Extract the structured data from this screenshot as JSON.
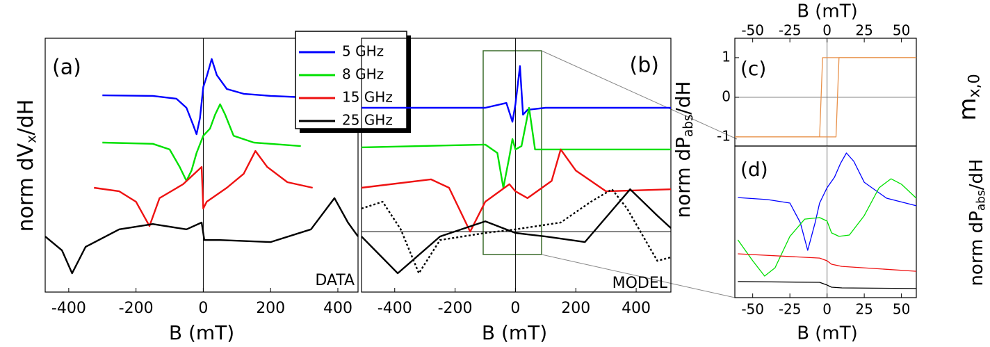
{
  "chart_data": [
    {
      "type": "line",
      "panel": "(a)",
      "annotation": "DATA",
      "x_label": "B (mT)",
      "y_label": {
        "main": "norm dV",
        "sub": "x",
        "tail": "/dH"
      },
      "xlim": [
        -470,
        460
      ],
      "ylim": [
        0,
        10
      ],
      "xticks": [
        -400,
        -200,
        0,
        200,
        400
      ],
      "series": [
        {
          "name": "5 GHz",
          "color": "#0000ff",
          "x": [
            -300,
            -150,
            -80,
            -50,
            -30,
            -20,
            -10,
            0,
            10,
            25,
            40,
            70,
            120,
            200,
            300,
            450
          ],
          "values": [
            7.75,
            7.73,
            7.62,
            7.26,
            6.58,
            6.22,
            6.85,
            8.08,
            8.49,
            9.18,
            8.55,
            8.0,
            7.81,
            7.73,
            7.67,
            7.64
          ]
        },
        {
          "name": "8 GHz",
          "color": "#00e000",
          "x": [
            -300,
            -150,
            -100,
            -70,
            -50,
            -35,
            -20,
            0,
            20,
            35,
            50,
            65,
            90,
            150,
            290
          ],
          "values": [
            5.89,
            5.84,
            5.62,
            4.93,
            4.38,
            4.79,
            5.48,
            6.16,
            6.44,
            6.99,
            7.4,
            6.99,
            6.16,
            5.89,
            5.75
          ]
        },
        {
          "name": "15 GHz",
          "color": "#ee1111",
          "x": [
            -325,
            -250,
            -200,
            -160,
            -130,
            -60,
            -5,
            0,
            10,
            70,
            120,
            155,
            190,
            250,
            325
          ],
          "values": [
            4.11,
            3.97,
            3.56,
            2.6,
            3.7,
            4.25,
            4.93,
            3.29,
            3.56,
            4.11,
            4.66,
            5.56,
            4.93,
            4.33,
            4.11
          ]
        },
        {
          "name": "25 GHz",
          "color": "#000000",
          "x": [
            -470,
            -420,
            -390,
            -350,
            -250,
            -150,
            -50,
            -5,
            3,
            50,
            200,
            320,
            390,
            430,
            460
          ],
          "values": [
            2.19,
            1.64,
            0.74,
            1.78,
            2.47,
            2.68,
            2.47,
            2.74,
            2.05,
            2.05,
            1.97,
            2.47,
            3.7,
            2.74,
            2.19
          ]
        }
      ]
    },
    {
      "type": "line",
      "panel": "(b)",
      "annotation": "MODEL",
      "x_label": "B  (mT)",
      "y_label": {
        "main": "norm dP",
        "sub": "abs",
        "tail": "/dH"
      },
      "xlim": [
        -510,
        515
      ],
      "ylim": [
        0,
        10
      ],
      "xticks": [
        -400,
        -200,
        0,
        200,
        400
      ],
      "reference_line": 2.38,
      "series": [
        {
          "color": "#0000ff",
          "x": [
            -510,
            -100,
            -30,
            -10,
            0,
            15,
            25,
            40,
            100,
            515
          ],
          "values": [
            7.26,
            7.26,
            7.45,
            6.71,
            7.4,
            8.9,
            6.99,
            7.18,
            7.26,
            7.26
          ]
        },
        {
          "color": "#00e000",
          "x": [
            -510,
            -100,
            -60,
            -40,
            -20,
            -10,
            0,
            20,
            45,
            65,
            150,
            515
          ],
          "values": [
            5.7,
            5.81,
            5.48,
            4.11,
            5.34,
            6.03,
            5.62,
            5.75,
            7.26,
            5.62,
            5.62,
            5.62
          ]
        },
        {
          "color": "#ee1111",
          "x": [
            -510,
            -280,
            -220,
            -150,
            -100,
            -20,
            0,
            40,
            120,
            150,
            200,
            300,
            515
          ],
          "values": [
            4.11,
            4.44,
            4.11,
            2.38,
            3.56,
            4.25,
            3.97,
            3.7,
            4.38,
            5.62,
            4.79,
            3.97,
            4.05
          ]
        },
        {
          "color": "#000000",
          "x": [
            -510,
            -390,
            -250,
            -100,
            0,
            100,
            230,
            380,
            470,
            515
          ],
          "values": [
            2.19,
            0.74,
            2.19,
            2.79,
            2.33,
            2.19,
            1.97,
            4.05,
            3.01,
            2.52
          ]
        },
        {
          "color": "#000000",
          "style": "dotted",
          "x": [
            -510,
            -440,
            -380,
            -320,
            -250,
            -100,
            0,
            150,
            250,
            320,
            370,
            470,
            515
          ],
          "values": [
            3.29,
            3.56,
            2.47,
            0.74,
            2.05,
            2.33,
            2.47,
            2.74,
            3.56,
            4.05,
            3.29,
            1.23,
            1.37
          ]
        }
      ]
    },
    {
      "type": "line",
      "panel": "(c)",
      "x_label": "B (mT)",
      "y_label": {
        "main": "m",
        "sub": "x,0",
        "tail": ""
      },
      "xlim": [
        -62,
        60
      ],
      "ylim": [
        -1.23,
        1.49
      ],
      "xticks": [
        -50,
        -25,
        0,
        25,
        50
      ],
      "yticks": [
        1,
        0,
        -1
      ],
      "reference_line": 0,
      "series": [
        {
          "color": "#e8914a",
          "x": [
            -62,
            6,
            8,
            60
          ],
          "values": [
            -1,
            -1,
            1,
            1
          ]
        },
        {
          "color": "#e8914a",
          "x": [
            60,
            -3,
            -5,
            -62
          ],
          "values": [
            1,
            1,
            -1,
            -1
          ]
        }
      ]
    },
    {
      "type": "line",
      "panel": "(d)",
      "x_label": "B  (mT)",
      "y_label": {
        "main": "norm dP",
        "sub": "abs",
        "tail": "/dH"
      },
      "xlim": [
        -62,
        60
      ],
      "ylim": [
        0,
        10
      ],
      "xticks": [
        -50,
        -25,
        0,
        25,
        50
      ],
      "series": [
        {
          "color": "#0000ff",
          "x": [
            -60,
            -40,
            -25,
            -18,
            -13,
            -8,
            -5,
            0,
            5,
            9,
            13,
            18,
            25,
            40,
            60
          ],
          "values": [
            6.6,
            6.47,
            6.24,
            4.95,
            3.12,
            4.95,
            6.24,
            7.25,
            7.94,
            8.85,
            9.54,
            8.99,
            7.61,
            6.56,
            6.06
          ]
        },
        {
          "color": "#00e000",
          "x": [
            -60,
            -50,
            -42,
            -35,
            -25,
            -15,
            -5,
            0,
            3,
            8,
            15,
            25,
            35,
            43,
            50,
            60
          ],
          "values": [
            3.81,
            2.43,
            1.42,
            1.97,
            4.04,
            5.18,
            5.28,
            5.05,
            4.27,
            4.04,
            4.13,
            5.41,
            7.25,
            7.84,
            7.48,
            6.56
          ]
        },
        {
          "color": "#ee1111",
          "x": [
            -60,
            -5,
            0,
            3,
            10,
            60
          ],
          "values": [
            2.89,
            2.61,
            2.43,
            2.2,
            2.06,
            1.74
          ]
        },
        {
          "color": "#000000",
          "x": [
            -60,
            -5,
            0,
            3,
            10,
            60
          ],
          "values": [
            1.06,
            1.01,
            0.83,
            0.69,
            0.64,
            0.6
          ]
        }
      ]
    }
  ]
}
